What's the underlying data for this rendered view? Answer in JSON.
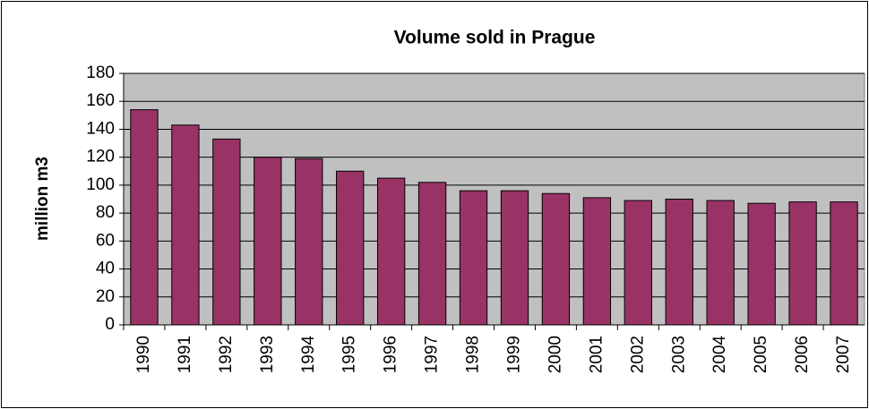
{
  "chart_data": {
    "type": "bar",
    "title": "Volume sold in Prague",
    "y_label": "million m3",
    "categories": [
      "1990",
      "1991",
      "1992",
      "1993",
      "1994",
      "1995",
      "1996",
      "1997",
      "1998",
      "1999",
      "2000",
      "2001",
      "2002",
      "2003",
      "2004",
      "2005",
      "2006",
      "2007"
    ],
    "values": [
      154,
      143,
      133,
      120,
      119,
      110,
      105,
      102,
      96,
      96,
      94,
      91,
      89,
      90,
      89,
      87,
      88,
      88
    ],
    "color": "#993366",
    "ylim": [
      0,
      180
    ],
    "yticks": [
      0,
      20,
      40,
      60,
      80,
      100,
      120,
      140,
      160,
      180
    ],
    "grid": true
  }
}
